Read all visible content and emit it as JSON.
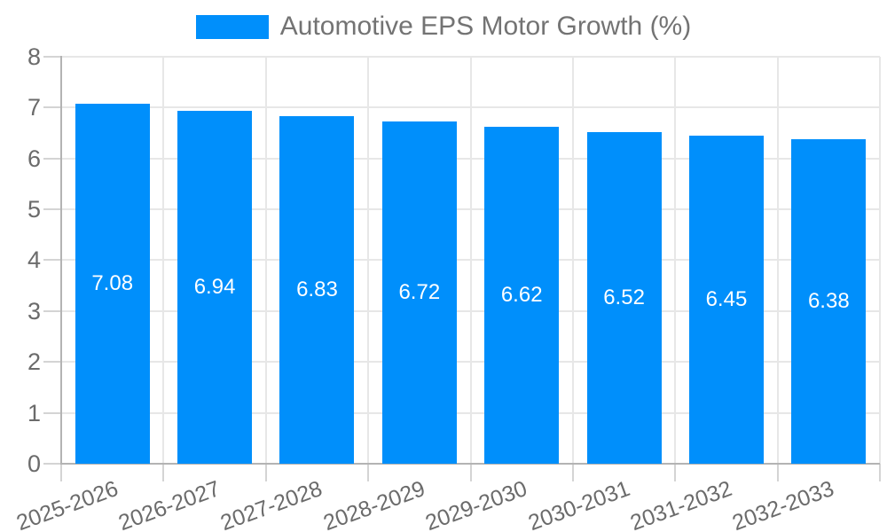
{
  "legend": {
    "label": "Automotive EPS Motor Growth (%)",
    "swatch_color": "#008FFB"
  },
  "chart_data": {
    "type": "bar",
    "title": "Automotive EPS Motor Growth (%)",
    "series_name": "Automotive EPS Motor Growth (%)",
    "categories": [
      "2025-2026",
      "2026-2027",
      "2027-2028",
      "2028-2029",
      "2029-2030",
      "2030-2031",
      "2031-2032",
      "2032-2033"
    ],
    "values": [
      7.08,
      6.94,
      6.83,
      6.72,
      6.62,
      6.52,
      6.45,
      6.38
    ],
    "value_labels": [
      "7.08",
      "6.94",
      "6.83",
      "6.72",
      "6.62",
      "6.52",
      "6.45",
      "6.38"
    ],
    "xlabel": "",
    "ylabel": "",
    "ylim": [
      0,
      8
    ],
    "yticks": [
      0,
      1,
      2,
      3,
      4,
      5,
      6,
      7,
      8
    ],
    "grid": true,
    "legend_position": "top",
    "bar_color": "#008FFB",
    "data_label_color": "#ffffff",
    "x_label_rotation": -20
  },
  "colors": {
    "background": "#ffffff",
    "gridline": "#e7e7e7",
    "axis_line": "#b3b3b3",
    "tick_mark": "#d4d4d4",
    "tick_label": "#6b6b6b",
    "legend_text": "#737373"
  }
}
